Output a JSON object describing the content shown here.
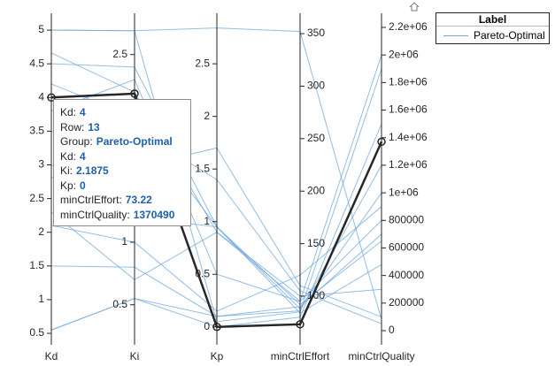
{
  "chart_data": {
    "type": "parallel_coordinates",
    "axes": [
      {
        "name": "Kd",
        "ylim": [
          0.33,
          5.25
        ],
        "yticks": [
          0.5,
          1,
          1.5,
          2,
          2.5,
          3,
          3.5,
          4,
          4.5,
          5
        ],
        "side": "left"
      },
      {
        "name": "Ki",
        "ylim": [
          0.18,
          2.83
        ],
        "yticks": [
          0.5,
          1,
          1.5,
          2,
          2.5
        ],
        "side": "left"
      },
      {
        "name": "Kp",
        "ylim": [
          -0.17,
          2.98
        ],
        "yticks": [
          0,
          0.5,
          1,
          1.5,
          2,
          2.5
        ],
        "side": "left"
      },
      {
        "name": "minCtrlEffort",
        "ylim": [
          53.7,
          369.4
        ],
        "yticks": [
          100,
          150,
          200,
          250,
          300,
          350
        ],
        "side": "right"
      },
      {
        "name": "minCtrlQuality",
        "ylim": [
          -102560,
          2302560
        ],
        "yticks": [
          0,
          200000,
          400000,
          600000,
          800000,
          {
            "value": 1000000,
            "label": "1e+06"
          },
          {
            "value": 1200000,
            "label": "1.2e+06"
          },
          {
            "value": 1400000,
            "label": "1.4e+06"
          },
          {
            "value": 1600000,
            "label": "1.6e+06"
          },
          {
            "value": 1800000,
            "label": "1.8e+06"
          },
          {
            "value": 2000000,
            "label": "2e+06"
          },
          {
            "value": 2200000,
            "label": "2.2e+06"
          }
        ],
        "side": "right"
      }
    ],
    "legend_title": "Label",
    "series": [
      {
        "name": "Pareto-Optimal",
        "color": "#6fa8dc",
        "highlight_color": "#262626",
        "highlighted_row": 0,
        "rows": [
          [
            4,
            2.1875,
            0,
            73.22,
            1370490
          ],
          [
            5,
            2.69,
            0.05,
            85,
            1900000
          ],
          [
            5,
            2.69,
            2.84,
            352,
            80000
          ],
          [
            4.66,
            2.2,
            0.9,
            95,
            2000000
          ],
          [
            0.55,
            0.55,
            0,
            80,
            1500000
          ],
          [
            0.55,
            0.55,
            0.1,
            90,
            700000
          ],
          [
            2.3,
            0.7,
            0.9,
            100,
            300000
          ],
          [
            3.5,
            1.6,
            1.7,
            110,
            100000
          ],
          [
            2.8,
            1.9,
            1.4,
            105,
            50000
          ],
          [
            4.2,
            2.0,
            0.95,
            88,
            1000000
          ],
          [
            3.0,
            1.2,
            0.95,
            92,
            650000
          ],
          [
            2.1,
            1.0,
            0.15,
            120,
            900000
          ],
          [
            4.5,
            2.4,
            0.95,
            84,
            480000
          ],
          [
            1.5,
            0.8,
            0.1,
            86,
            1200000
          ],
          [
            3.8,
            2.3,
            0.5,
            95,
            800000
          ]
        ]
      }
    ]
  },
  "tooltip": {
    "rows": [
      {
        "label": "Kd:",
        "value": 4
      },
      {
        "label": "Row:",
        "value": 13
      },
      {
        "label": "Group:",
        "value": "Pareto-Optimal"
      },
      {
        "label": "Kd:",
        "value": 4
      },
      {
        "label": "Ki:",
        "value": 2.1875
      },
      {
        "label": "Kp:",
        "value": 0
      },
      {
        "label": "minCtrlEffort:",
        "value": 73.22
      },
      {
        "label": "minCtrlQuality:",
        "value": 1370490
      }
    ]
  }
}
